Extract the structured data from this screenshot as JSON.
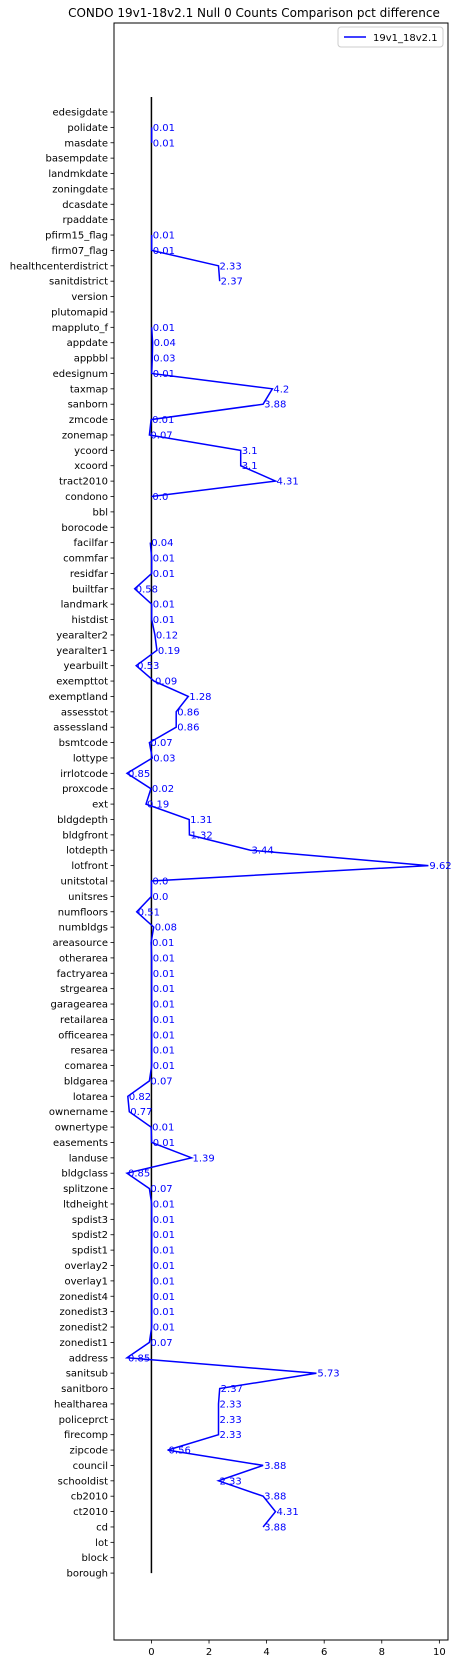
{
  "chart_data": {
    "type": "line",
    "orientation": "horizontal",
    "title": "CONDO 19v1-18v2.1 Null 0 Counts Comparison pct difference",
    "xlabel": "",
    "ylabel": "",
    "xlim": [
      -1.3,
      10.3
    ],
    "xticks": [
      0,
      2,
      4,
      6,
      8,
      10
    ],
    "grid": false,
    "legend_position": "top-right",
    "reference_line_x": 0,
    "colors": {
      "series": "#0000ff",
      "zero_line": "#000000"
    },
    "categories": [
      "edesigdate",
      "polidate",
      "masdate",
      "basempdate",
      "landmkdate",
      "zoningdate",
      "dcasdate",
      "rpaddate",
      "pfirm15_flag",
      "firm07_flag",
      "healthcenterdistrict",
      "sanitdistrict",
      "version",
      "plutomapid",
      "mappluto_f",
      "appdate",
      "appbbl",
      "edesignum",
      "taxmap",
      "sanborn",
      "zmcode",
      "zonemap",
      "ycoord",
      "xcoord",
      "tract2010",
      "condono",
      "bbl",
      "borocode",
      "facilfar",
      "commfar",
      "residfar",
      "builtfar",
      "landmark",
      "histdist",
      "yearalter2",
      "yearalter1",
      "yearbuilt",
      "exempttot",
      "exemptland",
      "assesstot",
      "assessland",
      "bsmtcode",
      "lottype",
      "irrlotcode",
      "proxcode",
      "ext",
      "bldgdepth",
      "bldgfront",
      "lotdepth",
      "lotfront",
      "unitstotal",
      "unitsres",
      "numfloors",
      "numbldgs",
      "areasource",
      "otherarea",
      "factryarea",
      "strgearea",
      "garagearea",
      "retailarea",
      "officearea",
      "resarea",
      "comarea",
      "bldgarea",
      "lotarea",
      "ownername",
      "ownertype",
      "easements",
      "landuse",
      "bldgclass",
      "splitzone",
      "ltdheight",
      "spdist3",
      "spdist2",
      "spdist1",
      "overlay2",
      "overlay1",
      "zonedist4",
      "zonedist3",
      "zonedist2",
      "zonedist1",
      "address",
      "sanitsub",
      "sanitboro",
      "healtharea",
      "policeprct",
      "firecomp",
      "zipcode",
      "council",
      "schooldist",
      "cb2010",
      "ct2010",
      "cd",
      "lot",
      "block",
      "borough"
    ],
    "series": [
      {
        "name": "19v1_18v2.1",
        "values": [
          null,
          0.01,
          0.01,
          null,
          null,
          null,
          null,
          null,
          0.01,
          0.01,
          2.33,
          2.37,
          null,
          null,
          0.01,
          0.04,
          0.03,
          0.01,
          4.2,
          3.88,
          -0.01,
          -0.07,
          3.1,
          3.1,
          4.31,
          0.0,
          null,
          null,
          -0.04,
          0.01,
          0.01,
          -0.58,
          0.01,
          0.01,
          0.12,
          0.19,
          -0.53,
          0.09,
          1.28,
          0.86,
          0.86,
          -0.07,
          0.03,
          -0.85,
          -0.02,
          -0.19,
          1.31,
          1.32,
          3.44,
          9.62,
          0.0,
          0.0,
          -0.51,
          0.08,
          -0.01,
          0.01,
          0.01,
          0.01,
          0.01,
          0.01,
          0.01,
          0.01,
          0.01,
          -0.07,
          -0.82,
          -0.77,
          -0.01,
          0.01,
          1.39,
          -0.85,
          -0.07,
          0.01,
          0.01,
          0.01,
          0.01,
          0.01,
          0.01,
          0.01,
          0.01,
          0.01,
          -0.07,
          -0.85,
          5.73,
          2.37,
          2.33,
          2.33,
          2.33,
          0.56,
          3.88,
          2.33,
          3.88,
          4.31,
          3.88,
          null,
          null,
          null
        ],
        "labels": [
          "",
          "0.01",
          "0.01",
          "",
          "",
          "",
          "",
          "",
          "0.01",
          "0.01",
          "2.33",
          "2.37",
          "",
          "",
          "0.01",
          "0.04",
          "0.03",
          "0.01",
          "4.2",
          "3.88",
          "0.01",
          "0.07",
          "3.1",
          "3.1",
          "4.31",
          "0.0",
          "",
          "",
          "0.04",
          "0.01",
          "0.01",
          "0.58",
          "0.01",
          "0.01",
          "0.12",
          "0.19",
          "0.53",
          "0.09",
          "1.28",
          "0.86",
          "0.86",
          "0.07",
          "0.03",
          "0.85",
          "0.02",
          "0.19",
          "1.31",
          "1.32",
          "3.44",
          "9.62",
          "0.0",
          "0.0",
          "0.51",
          "0.08",
          "0.01",
          "0.01",
          "0.01",
          "0.01",
          "0.01",
          "0.01",
          "0.01",
          "0.01",
          "0.01",
          "0.07",
          "0.82",
          "0.77",
          "0.01",
          "0.01",
          "1.39",
          "0.85",
          "0.07",
          "0.01",
          "0.01",
          "0.01",
          "0.01",
          "0.01",
          "0.01",
          "0.01",
          "0.01",
          "0.01",
          "0.07",
          "0.85",
          "5.73",
          "2.37",
          "2.33",
          "2.33",
          "2.33",
          "0.56",
          "3.88",
          "2.33",
          "3.88",
          "4.31",
          "3.88",
          "",
          "",
          ""
        ]
      }
    ]
  }
}
